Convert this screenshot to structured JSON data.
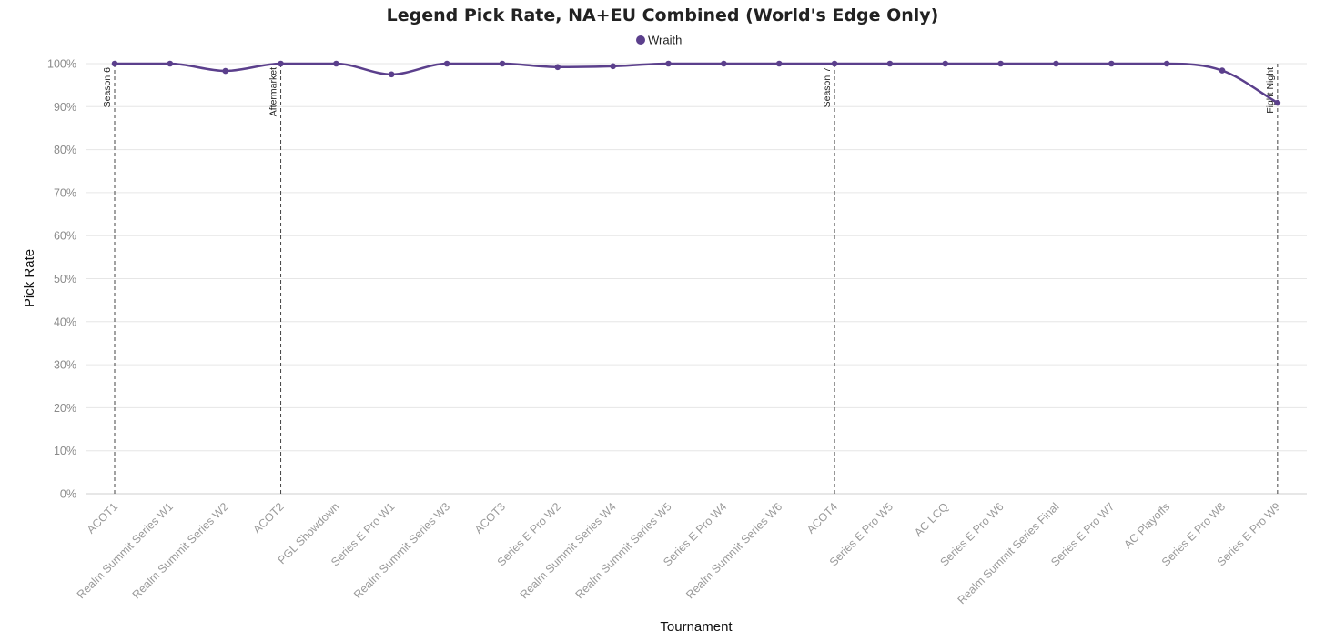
{
  "chart_data": {
    "type": "line",
    "title": "Legend Pick Rate, NA+EU Combined (World's Edge Only)",
    "xlabel": "Tournament",
    "ylabel": "Pick Rate",
    "ylim": [
      0,
      100
    ],
    "y_ticks": [
      "0%",
      "10%",
      "20%",
      "30%",
      "40%",
      "50%",
      "60%",
      "70%",
      "80%",
      "90%",
      "100%"
    ],
    "grid": true,
    "legend_placement": "top-center",
    "categories": [
      "ACOT1",
      "Realm Summit Series W1",
      "Realm Summit Series W2",
      "ACOT2",
      "PGL Showdown",
      "Series E Pro W1",
      "Realm Summit Series W3",
      "ACOT3",
      "Series E Pro W2",
      "Realm Summit Series W4",
      "Realm Summit Series W5",
      "Series E Pro W4",
      "Realm Summit Series W6",
      "ACOT4",
      "Series E Pro W5",
      "AC LCQ",
      "Series E Pro W6",
      "Realm Summit Series Final",
      "Series E Pro W7",
      "AC Playoffs",
      "Series E Pro W8",
      "Series E Pro W9"
    ],
    "series": [
      {
        "name": "Wraith",
        "color": "#5b3f8c",
        "values": [
          100,
          100,
          98.3,
          100,
          100,
          97.5,
          100,
          100,
          99.2,
          99.4,
          100,
          100,
          100,
          100,
          100,
          100,
          100,
          100,
          100,
          100,
          98.4,
          90.9
        ]
      }
    ],
    "annotations": [
      {
        "label": "Season 6",
        "category": "ACOT1"
      },
      {
        "label": "Aftermarket",
        "category": "ACOT2"
      },
      {
        "label": "Season 7",
        "category": "ACOT4"
      },
      {
        "label": "Fight Night",
        "category": "Series E Pro W9"
      }
    ]
  }
}
